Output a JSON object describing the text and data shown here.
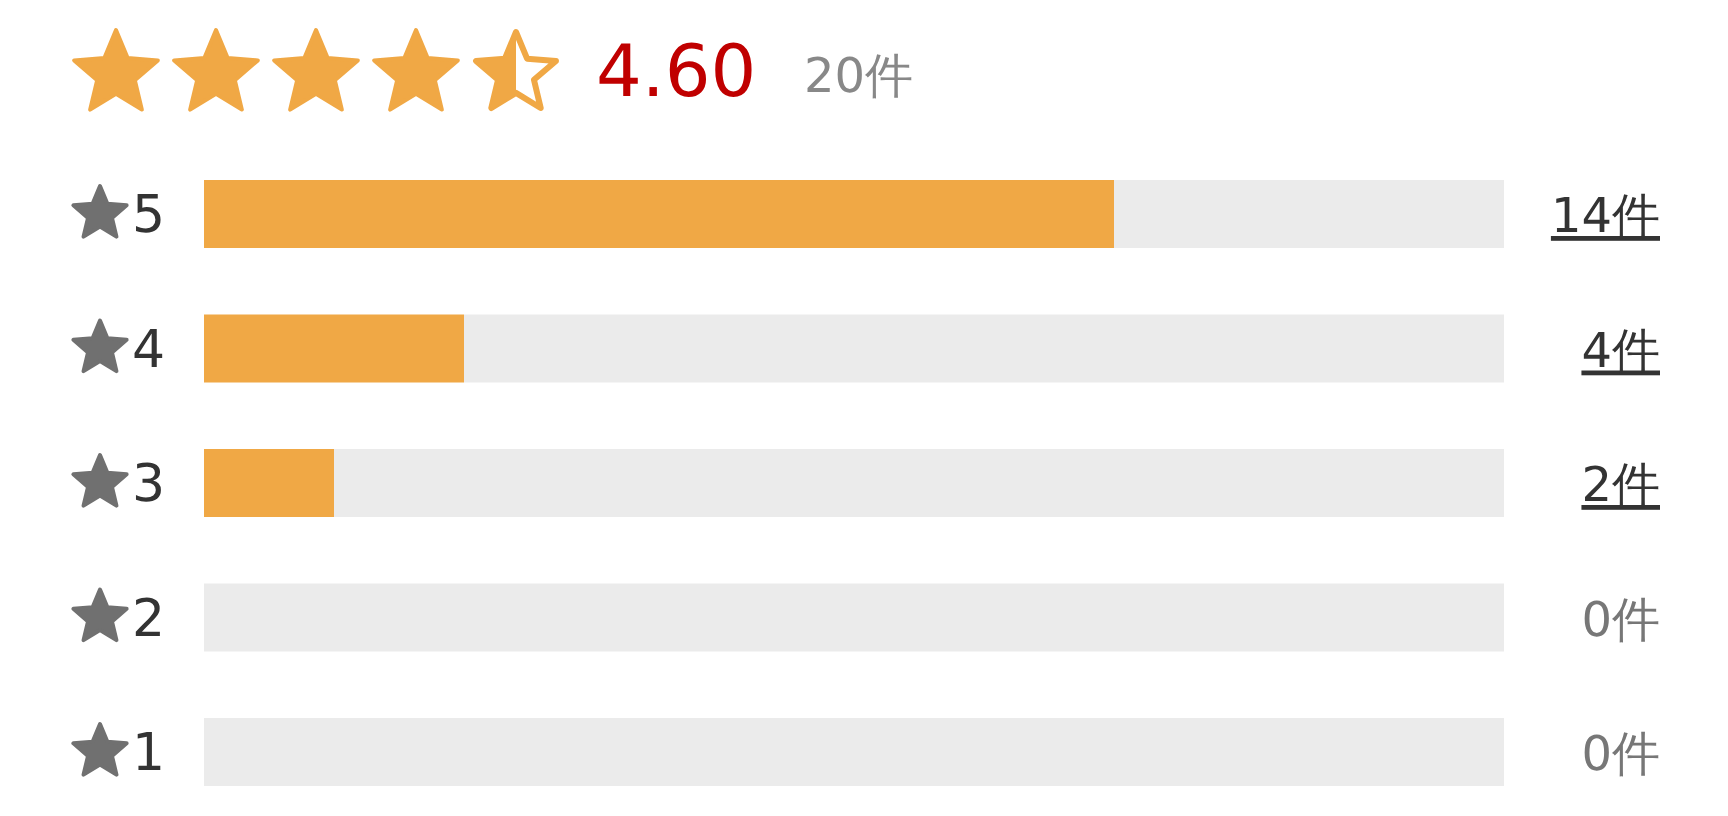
{
  "chart_data": {
    "type": "bar",
    "orientation": "horizontal",
    "stacked": true,
    "title": "4.60",
    "subtitle": "20件",
    "categories": [
      "5",
      "4",
      "3",
      "2",
      "1"
    ],
    "series": [
      {
        "color": "#f0a845",
        "values": [
          14,
          4,
          2,
          0,
          0
        ],
        "value_labels": [
          "14件",
          "4件",
          "2件",
          "0件",
          "0件"
        ]
      },
      {
        "color": "#ebebeb",
        "values": [
          6,
          16,
          18,
          20,
          20
        ]
      }
    ],
    "xlim": [
      0,
      20
    ],
    "tick_labels": "y"
  }
}
